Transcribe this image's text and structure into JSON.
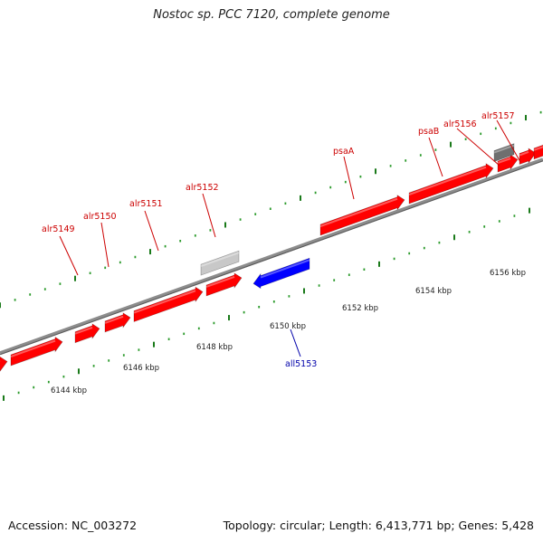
{
  "title": "Nostoc sp. PCC 7120, complete genome",
  "footer": {
    "accession": "Accession: NC_003272",
    "summary": "Topology: circular; Length: 6,413,771 bp; Genes: 5,428"
  },
  "colors": {
    "forward_gene": "#ff0000",
    "reverse_gene": "#0000ff",
    "other_feature_light": "#c8c8c8",
    "other_feature_dark": "#6f6f6f",
    "backbone": "#8c8c8c",
    "tick_major": "#1a7a1a",
    "tick_minor": "#2a9a2a",
    "forward_label": "#cc0000",
    "reverse_label": "#0000aa"
  },
  "scale_labels": [
    {
      "text": "6144 kbp"
    },
    {
      "text": "6146 kbp"
    },
    {
      "text": "6148 kbp"
    },
    {
      "text": "6150 kbp"
    },
    {
      "text": "6152 kbp"
    },
    {
      "text": "6154 kbp"
    },
    {
      "text": "6156 kbp"
    }
  ],
  "gene_labels": [
    {
      "name": "alr5149",
      "strand": "forward"
    },
    {
      "name": "alr5150",
      "strand": "forward"
    },
    {
      "name": "alr5151",
      "strand": "forward"
    },
    {
      "name": "alr5152",
      "strand": "forward"
    },
    {
      "name": "psaA",
      "strand": "forward"
    },
    {
      "name": "psaB",
      "strand": "forward"
    },
    {
      "name": "alr5156",
      "strand": "forward"
    },
    {
      "name": "alr5157",
      "strand": "forward"
    },
    {
      "name": "all5153",
      "strand": "reverse"
    }
  ]
}
